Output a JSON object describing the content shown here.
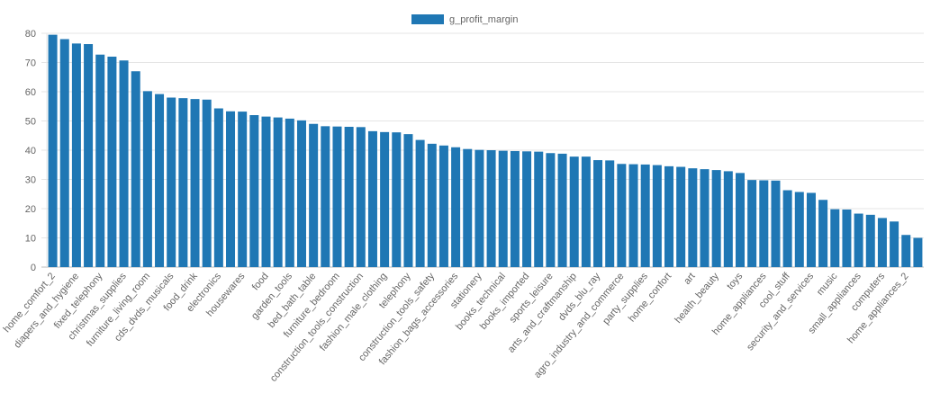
{
  "chart_data": {
    "type": "bar",
    "categories": [
      "home_comfort_2",
      null,
      "diapers_and_hygiene",
      null,
      "fixed_telephony",
      null,
      "christmas_supplies",
      null,
      "furniture_living_room",
      null,
      "cds_dvds_musicals",
      null,
      "food_drink",
      null,
      "electronics",
      null,
      "housewares",
      null,
      "food",
      null,
      "garden_tools",
      null,
      "bed_bath_table",
      null,
      "furniture_bedroom",
      null,
      "construction_tools_construction",
      null,
      "fashion_male_clothing",
      null,
      "telephony",
      null,
      "construction_tools_safety",
      null,
      "fashion_bags_accessories",
      null,
      "stationery",
      null,
      "books_technical",
      null,
      "books_imported",
      null,
      "sports_leisure",
      null,
      "arts_and_craftmanship",
      null,
      "dvds_blu_ray",
      null,
      "agro_industry_and_commerce",
      null,
      "party_supplies",
      null,
      "home_confort",
      null,
      "art",
      null,
      "health_beauty",
      null,
      "toys",
      null,
      "home_appliances",
      null,
      "cool_stuff",
      null,
      "security_and_services",
      null,
      "music",
      null,
      "small_appliances",
      null,
      "computers",
      null,
      "home_appliances_2",
      null
    ],
    "series": [
      {
        "name": "g_profit_margin",
        "color": "#1f77b4",
        "values": [
          79.5,
          78,
          76.5,
          76.3,
          72.7,
          72,
          70.7,
          67,
          60.2,
          59.2,
          58,
          57.8,
          57.5,
          57.3,
          54.3,
          53.3,
          53.2,
          52,
          51.5,
          51.2,
          50.8,
          50.2,
          49,
          48.2,
          48.1,
          48,
          47.9,
          46.5,
          46.2,
          46.1,
          45.5,
          43.5,
          42.2,
          41.6,
          41,
          40.4,
          40.1,
          40,
          39.8,
          39.7,
          39.6,
          39.5,
          39,
          38.8,
          37.8,
          37.8,
          36.6,
          36.5,
          35.3,
          35.2,
          35.1,
          34.9,
          34.5,
          34.3,
          33.8,
          33.5,
          33.2,
          32.8,
          32.2,
          29.8,
          29.7,
          29.6,
          26.3,
          25.7,
          25.4,
          23,
          19.8,
          19.7,
          18.3,
          17.9,
          16.8,
          15.6,
          11,
          10
        ]
      }
    ],
    "ylim": [
      0,
      80
    ],
    "yticks": [
      0,
      10,
      20,
      30,
      40,
      50,
      60,
      70,
      80
    ],
    "grid": true,
    "legend": "top"
  }
}
